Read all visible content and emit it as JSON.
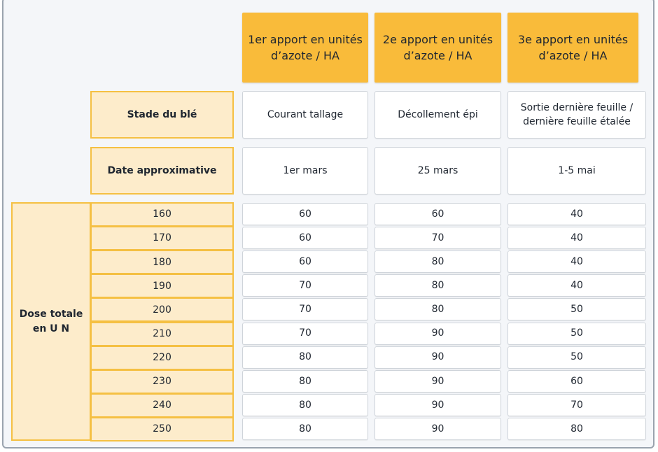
{
  "table": {
    "columns": [
      "1er apport en unités d’azote / HA",
      "2e apport en unités d’azote / HA",
      "3e apport en unités d’azote / HA"
    ],
    "rows": [
      {
        "label": "Stade du blé",
        "cells": [
          "Courant tallage",
          "Décollement épi",
          "Sortie dernière feuille / dernière feuille étalée"
        ]
      },
      {
        "label": "Date approximative",
        "cells": [
          "1er mars",
          "25 mars",
          "1-5 mai"
        ]
      }
    ],
    "dose_label": "Dose totale en U N",
    "doses": [
      {
        "total": 160,
        "cells": [
          60,
          60,
          40
        ]
      },
      {
        "total": 170,
        "cells": [
          60,
          70,
          40
        ]
      },
      {
        "total": 180,
        "cells": [
          60,
          80,
          40
        ]
      },
      {
        "total": 190,
        "cells": [
          70,
          80,
          40
        ]
      },
      {
        "total": 200,
        "cells": [
          70,
          80,
          50
        ]
      },
      {
        "total": 210,
        "cells": [
          70,
          90,
          50
        ]
      },
      {
        "total": 220,
        "cells": [
          80,
          90,
          50
        ]
      },
      {
        "total": 230,
        "cells": [
          80,
          90,
          60
        ]
      },
      {
        "total": 240,
        "cells": [
          80,
          90,
          70
        ]
      },
      {
        "total": 250,
        "cells": [
          80,
          90,
          80
        ]
      }
    ]
  }
}
